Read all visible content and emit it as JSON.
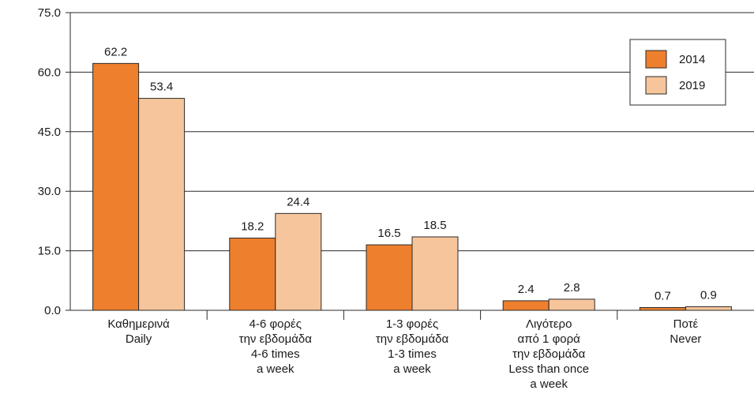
{
  "chart_data": {
    "type": "bar",
    "title": "",
    "xlabel": "",
    "ylabel": "",
    "ylim": [
      0,
      75
    ],
    "yticks": [
      "0.0",
      "15.0",
      "30.0",
      "45.0",
      "60.0",
      "75.0"
    ],
    "grid": true,
    "legend_position": "top-right",
    "categories": [
      [
        "Καθημερινά",
        "Daily"
      ],
      [
        "4-6 φορές",
        "την εβδομάδα",
        "4-6 times",
        "a week"
      ],
      [
        "1-3 φορές",
        "την εβδομάδα",
        "1-3 times",
        "a week"
      ],
      [
        "Λιγότερο",
        "από 1 φορά",
        "την εβδομάδα",
        "Less than once",
        "a week"
      ],
      [
        "Ποτέ",
        "Never"
      ]
    ],
    "series": [
      {
        "name": "2014",
        "color": "#ee7f2d",
        "values": [
          62.2,
          18.2,
          16.5,
          2.4,
          0.7
        ],
        "labels": [
          "62.2",
          "18.2",
          "16.5",
          "2.4",
          "0.7"
        ]
      },
      {
        "name": "2019",
        "color": "#f7c59b",
        "values": [
          53.4,
          24.4,
          18.5,
          2.8,
          0.9
        ],
        "labels": [
          "53.4",
          "24.4",
          "18.5",
          "2.8",
          "0.9"
        ]
      }
    ]
  }
}
